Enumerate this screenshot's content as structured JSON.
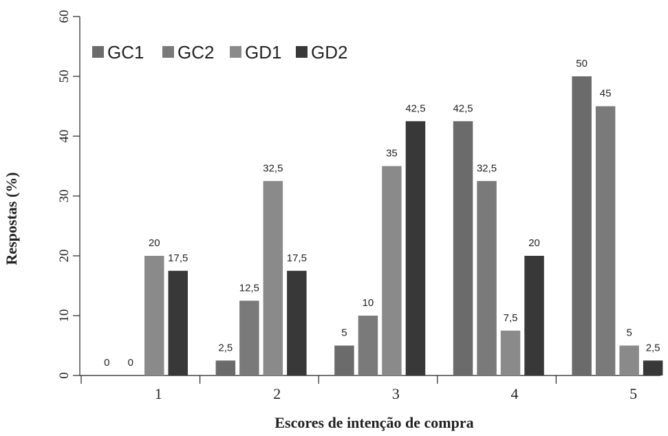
{
  "chart_data": {
    "type": "bar",
    "categories": [
      "1",
      "2",
      "3",
      "4",
      "5"
    ],
    "series": [
      {
        "name": "GC1",
        "color": "#6b6b6b",
        "values": [
          0,
          2.5,
          5,
          42.5,
          50
        ]
      },
      {
        "name": "GC2",
        "color": "#7a7a7a",
        "values": [
          0,
          12.5,
          10,
          32.5,
          45
        ]
      },
      {
        "name": "GD1",
        "color": "#8a8a8a",
        "values": [
          20,
          32.5,
          35,
          7.5,
          5
        ]
      },
      {
        "name": "GD2",
        "color": "#383838",
        "values": [
          17.5,
          17.5,
          42.5,
          20,
          2.5
        ]
      }
    ],
    "data_labels": [
      [
        "0",
        "2,5",
        "5",
        "42,5",
        "50"
      ],
      [
        "0",
        "12,5",
        "10",
        "32,5",
        "45"
      ],
      [
        "20",
        "32,5",
        "35",
        "7,5",
        "5"
      ],
      [
        "17,5",
        "17,5",
        "42,5",
        "20",
        "2,5"
      ]
    ],
    "yticks": [
      "0",
      "10",
      "20",
      "30",
      "40",
      "50",
      "60"
    ],
    "ylim": [
      0,
      60
    ],
    "xlabel": "Escores de intenção de compra",
    "ylabel": "Respostas (%)",
    "legend_position": "top-left",
    "grid": false
  }
}
